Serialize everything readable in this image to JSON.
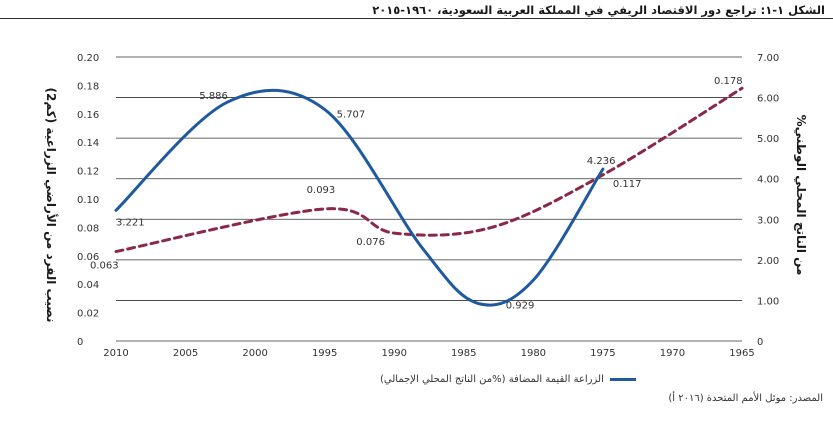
{
  "title": "الشكل ١-١: تراجع دور الاقتصاد الريفي في المملكة العربية السعودية، ١٩٦٠-٢٠١٥",
  "source": "المصدر: موئل الأمم المتحدة (٢٠١٦ أ)",
  "colors": {
    "blue": "#1f5aa0",
    "maroon": "#8b2846",
    "grid": "#333333"
  },
  "chart_data": {
    "type": "line",
    "x_ticks": [
      "2010",
      "2005",
      "2000",
      "1995",
      "1990",
      "1985",
      "1980",
      "1975",
      "1970",
      "1965"
    ],
    "xlim": [
      2010,
      1965
    ],
    "left_axis": {
      "label": "نصيب الفرد من الأراضي الزراعية (كم2)",
      "ticks": [
        "0.20",
        "0.18",
        "0.16",
        "0.14",
        "0.12",
        "0.10",
        "0.08",
        "0.06",
        "0.04",
        "0.02",
        "0"
      ],
      "ylim": [
        0,
        0.2
      ]
    },
    "right_axis": {
      "label": "%من الناتج المحلي الوطني",
      "ticks": [
        "7.00",
        "6.00",
        "5.00",
        "4.00",
        "3.00",
        "2.00",
        "1.00",
        "0"
      ],
      "ylim": [
        0,
        7
      ]
    },
    "series": [
      {
        "name": "الزراعة القيمة المضافة (%من الناتج المحلي الإجمالي)",
        "axis": "right",
        "style": "solid",
        "x": [
          2010,
          2002,
          1995,
          1988,
          1984,
          1980,
          1975
        ],
        "values": [
          3.221,
          5.886,
          5.707,
          2.3,
          0.929,
          1.5,
          4.236
        ],
        "labels": [
          {
            "x": 2010,
            "y": 3.221,
            "text": "3.221"
          },
          {
            "x": 2002,
            "y": 5.886,
            "text": "5.886"
          },
          {
            "x": 1995,
            "y": 5.707,
            "text": "5.707"
          },
          {
            "x": 1984,
            "y": 0.929,
            "text": "0.929"
          },
          {
            "x": 1975,
            "y": 4.236,
            "text": "4.236"
          }
        ]
      },
      {
        "name": "نصيب الفرد من الأراضي الزراعية",
        "axis": "left",
        "style": "dashed",
        "x": [
          2010,
          1995,
          1990,
          1983,
          1975,
          1965
        ],
        "values": [
          0.063,
          0.093,
          0.076,
          0.08,
          0.117,
          0.178
        ],
        "labels": [
          {
            "x": 2010,
            "y": 0.063,
            "text": "0.063"
          },
          {
            "x": 1995,
            "y": 0.093,
            "text": "0.093"
          },
          {
            "x": 1991,
            "y": 0.076,
            "text": "0.076"
          },
          {
            "x": 1975,
            "y": 0.117,
            "text": "0.117"
          },
          {
            "x": 1965,
            "y": 0.178,
            "text": "0.178"
          }
        ]
      }
    ],
    "legend": "الزراعة القيمة المضافة (%من الناتج المحلي الإجمالي)"
  }
}
